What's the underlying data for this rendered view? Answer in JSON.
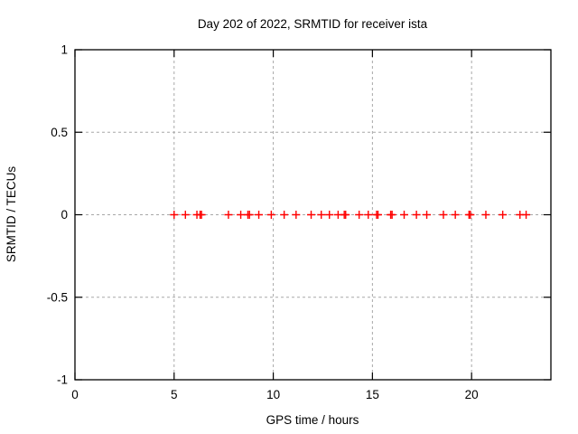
{
  "window": {
    "background": "#ffffff"
  },
  "chart_data": {
    "type": "scatter",
    "title": "Day 202 of 2022, SRMTID for receiver ista",
    "xlabel": "GPS time / hours",
    "ylabel": "SRMTID / TECUs",
    "xlim": [
      0,
      24
    ],
    "ylim": [
      -1,
      1
    ],
    "xticks": [
      0,
      5,
      10,
      15,
      20
    ],
    "xtick_labels": [
      "0",
      "5",
      "10",
      "15",
      "20"
    ],
    "yticks": [
      -1,
      -0.5,
      0,
      0.5,
      1
    ],
    "ytick_labels": [
      "-1",
      "-0.5",
      "0",
      "0.5",
      "1"
    ],
    "grid": true,
    "legend_position": "none",
    "marker": "plus",
    "marker_color": "#ff0000",
    "grid_color": "#a8a8a8",
    "frame_color": "#000000",
    "series": [
      {
        "name": "SRMTID",
        "x": [
          5.0,
          5.57,
          6.15,
          6.31,
          6.38,
          7.74,
          8.36,
          8.72,
          8.8,
          9.27,
          9.9,
          10.55,
          11.15,
          11.91,
          12.42,
          12.83,
          13.27,
          13.58,
          13.65,
          14.33,
          14.79,
          15.21,
          15.28,
          15.92,
          15.99,
          16.6,
          17.22,
          17.74,
          18.58,
          19.18,
          19.87,
          19.94,
          20.72,
          21.57,
          22.44,
          22.75
        ],
        "y": [
          0,
          0,
          0,
          0,
          0,
          0,
          0,
          0,
          0,
          0,
          0,
          0,
          0,
          0,
          0,
          0,
          0,
          0,
          0,
          0,
          0,
          0,
          0,
          0,
          0,
          0,
          0,
          0,
          0,
          0,
          0,
          0,
          0,
          0,
          0,
          0
        ]
      }
    ]
  }
}
